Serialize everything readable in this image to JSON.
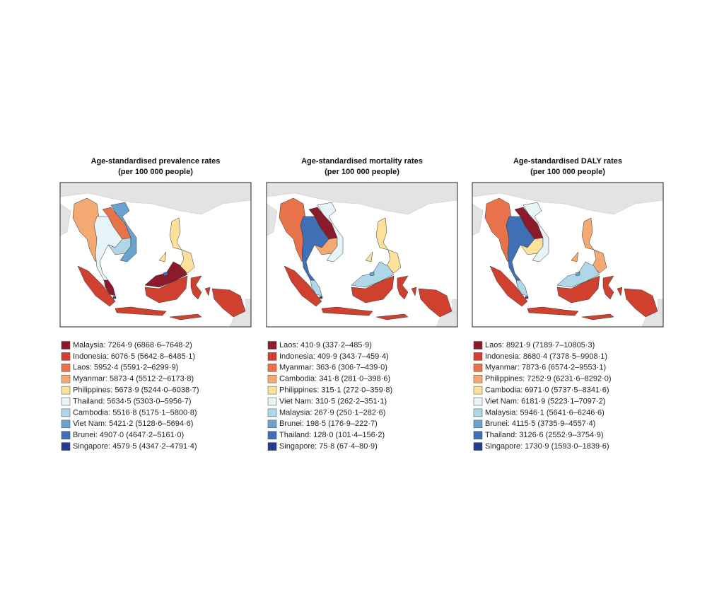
{
  "panels": [
    {
      "title": [
        "Age-standardised prevalence rates",
        "(per 100 000 people)"
      ],
      "legend": [
        {
          "label": "Malaysia: 7264·9 (6868·6–7648·2)",
          "color": "#8b1a2b"
        },
        {
          "label": "Indonesia: 6076·5 (5642·8–6485·1)",
          "color": "#d0402f"
        },
        {
          "label": "Laos: 5952·4 (5591·2–6299·9)",
          "color": "#e8734a"
        },
        {
          "label": "Myanmar: 5873·4 (5512·2–6173·8)",
          "color": "#f4a972"
        },
        {
          "label": "Philippines: 5673·9 (5244·0–6038·7)",
          "color": "#fbe19a"
        },
        {
          "label": "Thailand: 5634·5 (5303·0–5956·7)",
          "color": "#e6f4f8"
        },
        {
          "label": "Cambodia: 5516·8 (5175·1–5800·8)",
          "color": "#aed7e8"
        },
        {
          "label": "Viet Nam: 5421·2 (5128·6–5694·6)",
          "color": "#6ba3d0"
        },
        {
          "label": "Brunei: 4907·0 (4647·2–5161·0)",
          "color": "#3f6fb4"
        },
        {
          "label": "Singapore: 4579·5 (4347·2–4791·4)",
          "color": "#263c8f"
        }
      ]
    },
    {
      "title": [
        "Age-standardised mortality rates",
        "(per 100 000 people)"
      ],
      "legend": [
        {
          "label": "Laos: 410·9 (337·2–485·9)",
          "color": "#8b1a2b"
        },
        {
          "label": "Indonesia: 409·9 (343·7–459·4)",
          "color": "#d0402f"
        },
        {
          "label": "Myanmar: 363·6 (306·7–439·0)",
          "color": "#e8734a"
        },
        {
          "label": "Cambodia: 341·8 (281·0–398·6)",
          "color": "#f4a972"
        },
        {
          "label": "Philippines: 315·1 (272·0–359·8)",
          "color": "#fbe19a"
        },
        {
          "label": "Viet Nam: 310·5 (262·2–351·1)",
          "color": "#e6f4f8"
        },
        {
          "label": "Malaysia: 267·9 (250·1–282·6)",
          "color": "#aed7e8"
        },
        {
          "label": "Brunei: 198·5 (176·9–222·7)",
          "color": "#6ba3d0"
        },
        {
          "label": "Thailand: 128·0 (101·4–156·2)",
          "color": "#3f6fb4"
        },
        {
          "label": "Singapore: 75·8 (67·4–80·9)",
          "color": "#263c8f"
        }
      ]
    },
    {
      "title": [
        "Age-standardised DALY rates",
        "(per 100 000 people)"
      ],
      "legend": [
        {
          "label": "Laos: 8921·9 (7189·7–10805·3)",
          "color": "#8b1a2b"
        },
        {
          "label": "Indonesia: 8680·4 (7378·5–9908·1)",
          "color": "#d0402f"
        },
        {
          "label": "Myanmar: 7873·6 (6574·2–9553·1)",
          "color": "#e8734a"
        },
        {
          "label": "Philippines: 7252·9 (6231·6–8292·0)",
          "color": "#f4a972"
        },
        {
          "label": "Cambodia: 6971·0 (5737·5–8341·6)",
          "color": "#fbe19a"
        },
        {
          "label": "Viet Nam: 6181·9 (5223·1–7097·2)",
          "color": "#e6f4f8"
        },
        {
          "label": "Malaysia: 5946·1 (5641·6–6246·6)",
          "color": "#aed7e8"
        },
        {
          "label": "Brunei: 4115·5 (3735·9–4557·4)",
          "color": "#6ba3d0"
        },
        {
          "label": "Thailand: 3126·6 (2552·9–3754·9)",
          "color": "#3f6fb4"
        },
        {
          "label": "Singapore: 1730·9 (1593·0–1839·6)",
          "color": "#263c8f"
        }
      ]
    }
  ]
}
